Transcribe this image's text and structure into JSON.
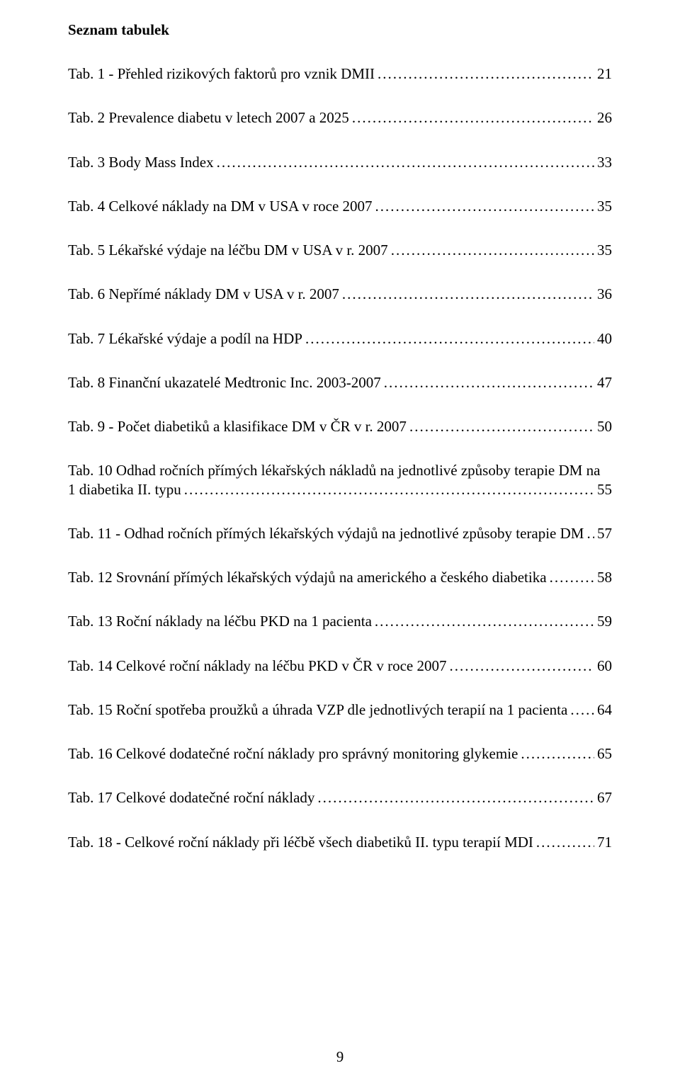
{
  "heading": "Seznam tabulek",
  "page_number": "9",
  "entries": [
    {
      "label": "Tab. 1 - Přehled rizikových faktorů pro vznik DMII",
      "page": "21",
      "multiline": false
    },
    {
      "label": "Tab. 2 Prevalence diabetu v letech 2007 a 2025",
      "page": "26",
      "multiline": false
    },
    {
      "label": "Tab. 3 Body Mass Index",
      "page": "33",
      "multiline": false
    },
    {
      "label": "Tab. 4 Celkové náklady na DM v USA v roce 2007",
      "page": "35",
      "multiline": false
    },
    {
      "label": "Tab. 5 Lékařské výdaje na léčbu DM v USA v r. 2007",
      "page": "35",
      "multiline": false
    },
    {
      "label": "Tab. 6 Nepřímé náklady DM v USA v r. 2007",
      "page": "36",
      "multiline": false
    },
    {
      "label": "Tab. 7 Lékařské výdaje a podíl na HDP",
      "page": "40",
      "multiline": false
    },
    {
      "label": "Tab. 8 Finanční ukazatelé Medtronic Inc. 2003-2007",
      "page": "47",
      "multiline": false
    },
    {
      "label": "Tab. 9 - Počet diabetiků a klasifikace DM v ČR v r. 2007",
      "page": "50",
      "multiline": false
    },
    {
      "label_line1": "Tab. 10 Odhad ročních přímých lékařských nákladů na jednotlivé způsoby terapie DM na",
      "label_line2": "1 diabetika II. typu",
      "page": "55",
      "multiline": true
    },
    {
      "label": "Tab. 11 - Odhad ročních přímých lékařských výdajů na jednotlivé způsoby terapie DM",
      "page": "57",
      "multiline": false
    },
    {
      "label": "Tab. 12 Srovnání přímých lékařských výdajů na amerického a českého diabetika",
      "page": "58",
      "multiline": false
    },
    {
      "label": "Tab. 13 Roční náklady na léčbu PKD na 1 pacienta",
      "page": "59",
      "multiline": false
    },
    {
      "label": "Tab. 14 Celkové roční náklady na léčbu PKD v ČR v roce 2007",
      "page": "60",
      "multiline": false
    },
    {
      "label": "Tab. 15 Roční spotřeba proužků a úhrada VZP dle jednotlivých terapií na 1 pacienta",
      "page": "64",
      "multiline": false
    },
    {
      "label": "Tab. 16 Celkové dodatečné roční náklady pro správný monitoring glykemie",
      "page": "65",
      "multiline": false
    },
    {
      "label": "Tab. 17 Celkové dodatečné roční náklady",
      "page": "67",
      "multiline": false
    },
    {
      "label": "Tab. 18 - Celkové roční náklady při léčbě všech diabetiků II. typu terapií MDI",
      "page": "71",
      "multiline": false
    }
  ]
}
